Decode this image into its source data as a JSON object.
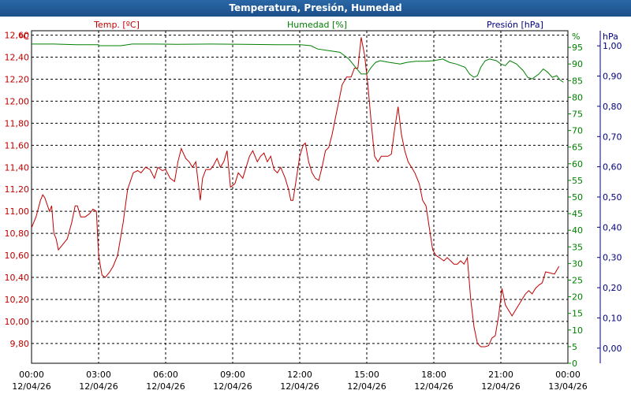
{
  "window": {
    "title": "Temperatura, Presión, Humedad"
  },
  "axes": {
    "temp": {
      "label": "Temp. [ºC]",
      "unit": "ºC",
      "min": 9.62,
      "max": 12.64,
      "ticks": [
        "9,80",
        "10,00",
        "10,20",
        "10,40",
        "10,60",
        "10,80",
        "11,00",
        "11,20",
        "11,40",
        "11,60",
        "11,80",
        "12,00",
        "12,20",
        "12,40",
        "12,60"
      ],
      "color": "#c00000"
    },
    "humidity": {
      "label": "Humedad [%]",
      "unit": "%",
      "min": 0,
      "max": 100,
      "ticks": [
        "0",
        "5",
        "10",
        "15",
        "20",
        "25",
        "30",
        "35",
        "40",
        "45",
        "50",
        "55",
        "60",
        "65",
        "70",
        "75",
        "80",
        "85",
        "90",
        "95"
      ],
      "color": "#008000"
    },
    "pressure": {
      "label": "Presión [hPa]",
      "unit": "hPa",
      "min": -0.05,
      "max": 1.05,
      "ticks": [
        "0,00",
        "0,10",
        "0,20",
        "0,30",
        "0,40",
        "0,50",
        "0,60",
        "0,70",
        "0,80",
        "0,90",
        "1,00"
      ],
      "color": "#000080"
    },
    "x_ticks": [
      {
        "time": "00:00",
        "date": "12/04/26"
      },
      {
        "time": "03:00",
        "date": "12/04/26"
      },
      {
        "time": "06:00",
        "date": "12/04/26"
      },
      {
        "time": "09:00",
        "date": "12/04/26"
      },
      {
        "time": "12:00",
        "date": "12/04/26"
      },
      {
        "time": "15:00",
        "date": "12/04/26"
      },
      {
        "time": "18:00",
        "date": "12/04/26"
      },
      {
        "time": "21:00",
        "date": "12/04/26"
      },
      {
        "time": "00:00",
        "date": "13/04/26"
      }
    ]
  },
  "chart_data": {
    "type": "line",
    "title": "Temperatura, Presión, Humedad",
    "x_unit": "hours since 12/04/26 00:00",
    "xlim": [
      0,
      24
    ],
    "grid": true,
    "series": [
      {
        "name": "Temp. [ºC]",
        "axis": "temp",
        "color": "#c00000",
        "points": [
          [
            0,
            10.85
          ],
          [
            0.2,
            10.95
          ],
          [
            0.4,
            11.1
          ],
          [
            0.5,
            11.15
          ],
          [
            0.6,
            11.12
          ],
          [
            0.8,
            11.0
          ],
          [
            0.9,
            11.05
          ],
          [
            1.0,
            10.8
          ],
          [
            1.1,
            10.75
          ],
          [
            1.2,
            10.65
          ],
          [
            1.4,
            10.7
          ],
          [
            1.6,
            10.75
          ],
          [
            1.8,
            10.9
          ],
          [
            1.95,
            11.05
          ],
          [
            2.05,
            11.05
          ],
          [
            2.2,
            10.95
          ],
          [
            2.4,
            10.95
          ],
          [
            2.6,
            10.98
          ],
          [
            2.75,
            11.02
          ],
          [
            2.9,
            11.0
          ],
          [
            3.0,
            10.6
          ],
          [
            3.15,
            10.42
          ],
          [
            3.3,
            10.4
          ],
          [
            3.5,
            10.45
          ],
          [
            3.65,
            10.5
          ],
          [
            3.85,
            10.6
          ],
          [
            4.1,
            10.9
          ],
          [
            4.3,
            11.2
          ],
          [
            4.55,
            11.35
          ],
          [
            4.75,
            11.37
          ],
          [
            4.9,
            11.35
          ],
          [
            5.1,
            11.4
          ],
          [
            5.3,
            11.38
          ],
          [
            5.5,
            11.3
          ],
          [
            5.65,
            11.4
          ],
          [
            5.85,
            11.37
          ],
          [
            6.0,
            11.38
          ],
          [
            6.2,
            11.3
          ],
          [
            6.4,
            11.27
          ],
          [
            6.55,
            11.45
          ],
          [
            6.7,
            11.57
          ],
          [
            6.9,
            11.48
          ],
          [
            7.05,
            11.45
          ],
          [
            7.2,
            11.4
          ],
          [
            7.35,
            11.45
          ],
          [
            7.55,
            11.1
          ],
          [
            7.65,
            11.3
          ],
          [
            7.8,
            11.38
          ],
          [
            8.0,
            11.38
          ],
          [
            8.15,
            11.42
          ],
          [
            8.3,
            11.48
          ],
          [
            8.45,
            11.4
          ],
          [
            8.6,
            11.45
          ],
          [
            8.75,
            11.55
          ],
          [
            8.9,
            11.22
          ],
          [
            9.1,
            11.25
          ],
          [
            9.25,
            11.35
          ],
          [
            9.45,
            11.3
          ],
          [
            9.6,
            11.4
          ],
          [
            9.75,
            11.5
          ],
          [
            9.9,
            11.55
          ],
          [
            10.1,
            11.45
          ],
          [
            10.25,
            11.5
          ],
          [
            10.4,
            11.53
          ],
          [
            10.55,
            11.45
          ],
          [
            10.7,
            11.5
          ],
          [
            10.85,
            11.38
          ],
          [
            11.0,
            11.35
          ],
          [
            11.15,
            11.4
          ],
          [
            11.35,
            11.3
          ],
          [
            11.5,
            11.2
          ],
          [
            11.6,
            11.1
          ],
          [
            11.7,
            11.1
          ],
          [
            11.85,
            11.3
          ],
          [
            12.0,
            11.5
          ],
          [
            12.15,
            11.6
          ],
          [
            12.25,
            11.62
          ],
          [
            12.4,
            11.45
          ],
          [
            12.55,
            11.35
          ],
          [
            12.7,
            11.3
          ],
          [
            12.85,
            11.28
          ],
          [
            13.0,
            11.4
          ],
          [
            13.15,
            11.55
          ],
          [
            13.3,
            11.58
          ],
          [
            13.45,
            11.7
          ],
          [
            13.6,
            11.85
          ],
          [
            13.75,
            12.0
          ],
          [
            13.9,
            12.15
          ],
          [
            14.1,
            12.22
          ],
          [
            14.3,
            12.22
          ],
          [
            14.45,
            12.3
          ],
          [
            14.6,
            12.3
          ],
          [
            14.75,
            12.58
          ],
          [
            14.9,
            12.42
          ],
          [
            15.05,
            12.15
          ],
          [
            15.2,
            11.8
          ],
          [
            15.35,
            11.5
          ],
          [
            15.5,
            11.45
          ],
          [
            15.65,
            11.5
          ],
          [
            15.8,
            11.5
          ],
          [
            15.95,
            11.5
          ],
          [
            16.1,
            11.52
          ],
          [
            16.25,
            11.75
          ],
          [
            16.4,
            11.95
          ],
          [
            16.55,
            11.7
          ],
          [
            16.7,
            11.55
          ],
          [
            16.85,
            11.45
          ],
          [
            17.0,
            11.4
          ],
          [
            17.15,
            11.35
          ],
          [
            17.35,
            11.25
          ],
          [
            17.5,
            11.1
          ],
          [
            17.65,
            11.05
          ],
          [
            17.8,
            10.85
          ],
          [
            17.95,
            10.65
          ],
          [
            18.1,
            10.6
          ],
          [
            18.25,
            10.58
          ],
          [
            18.45,
            10.55
          ],
          [
            18.6,
            10.58
          ],
          [
            18.75,
            10.55
          ],
          [
            18.9,
            10.52
          ],
          [
            19.05,
            10.52
          ],
          [
            19.2,
            10.55
          ],
          [
            19.35,
            10.52
          ],
          [
            19.5,
            10.58
          ],
          [
            19.65,
            10.2
          ],
          [
            19.8,
            9.95
          ],
          [
            19.95,
            9.8
          ],
          [
            20.1,
            9.77
          ],
          [
            20.3,
            9.77
          ],
          [
            20.45,
            9.78
          ],
          [
            20.6,
            9.85
          ],
          [
            20.75,
            9.87
          ],
          [
            20.9,
            10.05
          ],
          [
            21.05,
            10.3
          ],
          [
            21.2,
            10.15
          ],
          [
            21.35,
            10.1
          ],
          [
            21.5,
            10.05
          ],
          [
            21.65,
            10.1
          ],
          [
            21.8,
            10.15
          ],
          [
            21.95,
            10.2
          ],
          [
            22.1,
            10.25
          ],
          [
            22.25,
            10.28
          ],
          [
            22.4,
            10.25
          ],
          [
            22.55,
            10.3
          ],
          [
            22.7,
            10.33
          ],
          [
            22.85,
            10.35
          ],
          [
            23.0,
            10.45
          ],
          [
            23.2,
            10.44
          ],
          [
            23.4,
            10.43
          ],
          [
            23.6,
            10.5
          ]
        ]
      },
      {
        "name": "Humedad [%]",
        "axis": "humidity",
        "color": "#008000",
        "points": [
          [
            0,
            96
          ],
          [
            1.0,
            96
          ],
          [
            2.0,
            95.8
          ],
          [
            3.0,
            95.8
          ],
          [
            3.0,
            95.5
          ],
          [
            4.0,
            95.5
          ],
          [
            4.5,
            96
          ],
          [
            5.5,
            96
          ],
          [
            6.5,
            95.9
          ],
          [
            8.0,
            96
          ],
          [
            9.5,
            95.9
          ],
          [
            11.0,
            95.8
          ],
          [
            12.0,
            95.8
          ],
          [
            12.5,
            95.5
          ],
          [
            12.8,
            94.5
          ],
          [
            13.3,
            94
          ],
          [
            13.8,
            93.5
          ],
          [
            14.2,
            91.5
          ],
          [
            14.5,
            89
          ],
          [
            14.75,
            87
          ],
          [
            15.0,
            87
          ],
          [
            15.2,
            89
          ],
          [
            15.4,
            90.5
          ],
          [
            15.6,
            91
          ],
          [
            16.0,
            90.5
          ],
          [
            16.5,
            90
          ],
          [
            16.8,
            90.5
          ],
          [
            17.2,
            90.8
          ],
          [
            17.6,
            90.8
          ],
          [
            18.0,
            91
          ],
          [
            18.4,
            91.5
          ],
          [
            18.7,
            90.5
          ],
          [
            19.0,
            90
          ],
          [
            19.4,
            89
          ],
          [
            19.6,
            87
          ],
          [
            19.8,
            86
          ],
          [
            19.95,
            86.5
          ],
          [
            20.1,
            89
          ],
          [
            20.3,
            91
          ],
          [
            20.5,
            91.5
          ],
          [
            20.8,
            91
          ],
          [
            21.0,
            90
          ],
          [
            21.2,
            89.5
          ],
          [
            21.4,
            91
          ],
          [
            21.7,
            90
          ],
          [
            22.0,
            88
          ],
          [
            22.2,
            86
          ],
          [
            22.4,
            85.5
          ],
          [
            22.7,
            87
          ],
          [
            22.9,
            88.5
          ],
          [
            23.1,
            87.5
          ],
          [
            23.3,
            86
          ],
          [
            23.5,
            86.5
          ],
          [
            23.65,
            85.2
          ],
          [
            23.8,
            84.5
          ]
        ]
      }
    ]
  }
}
